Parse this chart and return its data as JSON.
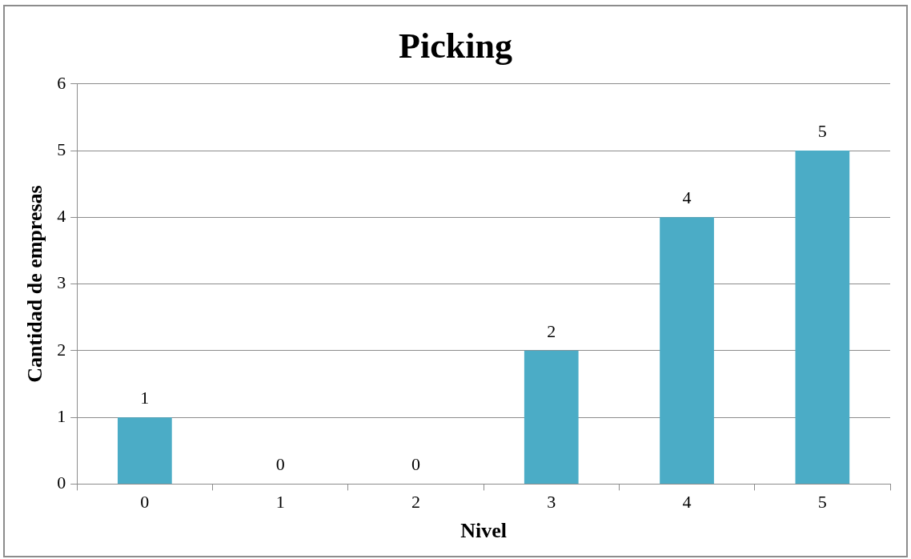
{
  "chart_data": {
    "type": "bar",
    "title": "Picking",
    "xlabel": "Nivel",
    "ylabel": "Cantidad de empresas",
    "categories": [
      "0",
      "1",
      "2",
      "3",
      "4",
      "5"
    ],
    "values": [
      1,
      0,
      0,
      2,
      4,
      5
    ],
    "color": "#4bacc6",
    "ylim": [
      0,
      6
    ],
    "yticks": [
      0,
      1,
      2,
      3,
      4,
      5,
      6
    ],
    "grid": "y",
    "data_labels": true,
    "legend": false
  }
}
